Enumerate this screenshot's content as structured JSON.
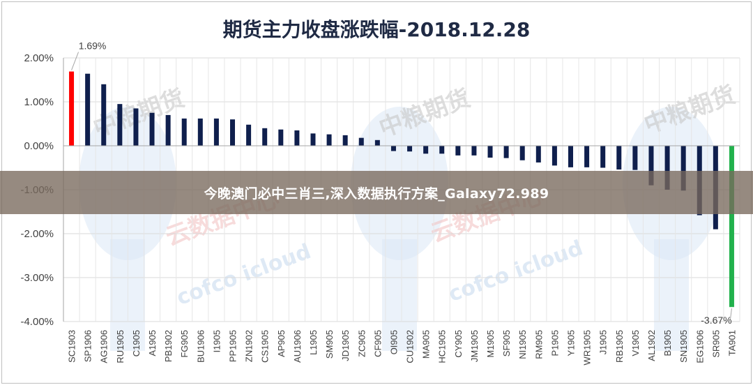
{
  "banner": {
    "text": "今晚澳门必中三肖三,深入数据执行方案_Galaxy72.989"
  },
  "watermarks": [
    {
      "text": "中粮期货"
    },
    {
      "text": "云数据中心"
    },
    {
      "text": "cofco icloud"
    }
  ],
  "colors": {
    "positive": "#0f1f4d",
    "negative": "#0f1f4d",
    "max": "#ff0000",
    "min": "#22b14c",
    "grid": "#d9d9d9",
    "axis": "#a6a6a6",
    "title": "#1f2a44"
  },
  "chart_data": {
    "type": "bar",
    "title": "期货主力收盘涨跌幅-2018.12.28",
    "xlabel": "",
    "ylabel": "",
    "ylim": [
      -4.0,
      2.0
    ],
    "yticks": [
      2.0,
      1.0,
      0.0,
      -1.0,
      -2.0,
      -3.0,
      -4.0
    ],
    "ytick_labels": [
      "2.00%",
      "1.00%",
      "0.00%",
      "-1.00%",
      "-2.00%",
      "-3.00%",
      "-4.00%"
    ],
    "grid": true,
    "categories": [
      "SC1903",
      "SP1906",
      "AG1906",
      "RU1905",
      "C1905",
      "A1905",
      "PB1902",
      "FG905",
      "BU1906",
      "I1905",
      "PP1905",
      "ZN1902",
      "CS1905",
      "AP905",
      "AU1906",
      "L1905",
      "SM905",
      "JD1905",
      "ZC905",
      "CF905",
      "OI905",
      "CU1902",
      "MA905",
      "HC1905",
      "CY905",
      "JM1905",
      "M1905",
      "SF905",
      "NI1905",
      "RM905",
      "P1905",
      "Y1905",
      "WR1905",
      "J1905",
      "RB1905",
      "V1905",
      "AL1902",
      "B1905",
      "SN1905",
      "EG1906",
      "SR905",
      "TA901"
    ],
    "values": [
      1.69,
      1.64,
      1.4,
      0.95,
      0.85,
      0.75,
      0.7,
      0.62,
      0.62,
      0.62,
      0.6,
      0.48,
      0.4,
      0.37,
      0.35,
      0.28,
      0.26,
      0.24,
      0.18,
      0.13,
      -0.12,
      -0.13,
      -0.18,
      -0.18,
      -0.22,
      -0.22,
      -0.27,
      -0.28,
      -0.33,
      -0.38,
      -0.45,
      -0.49,
      -0.49,
      -0.5,
      -0.54,
      -0.55,
      -0.9,
      -1.0,
      -1.02,
      -1.58,
      -1.9,
      -3.67
    ],
    "data_labels": [
      {
        "index": 0,
        "text": "1.69%"
      },
      {
        "index": 41,
        "text": "-3.67%"
      }
    ]
  }
}
